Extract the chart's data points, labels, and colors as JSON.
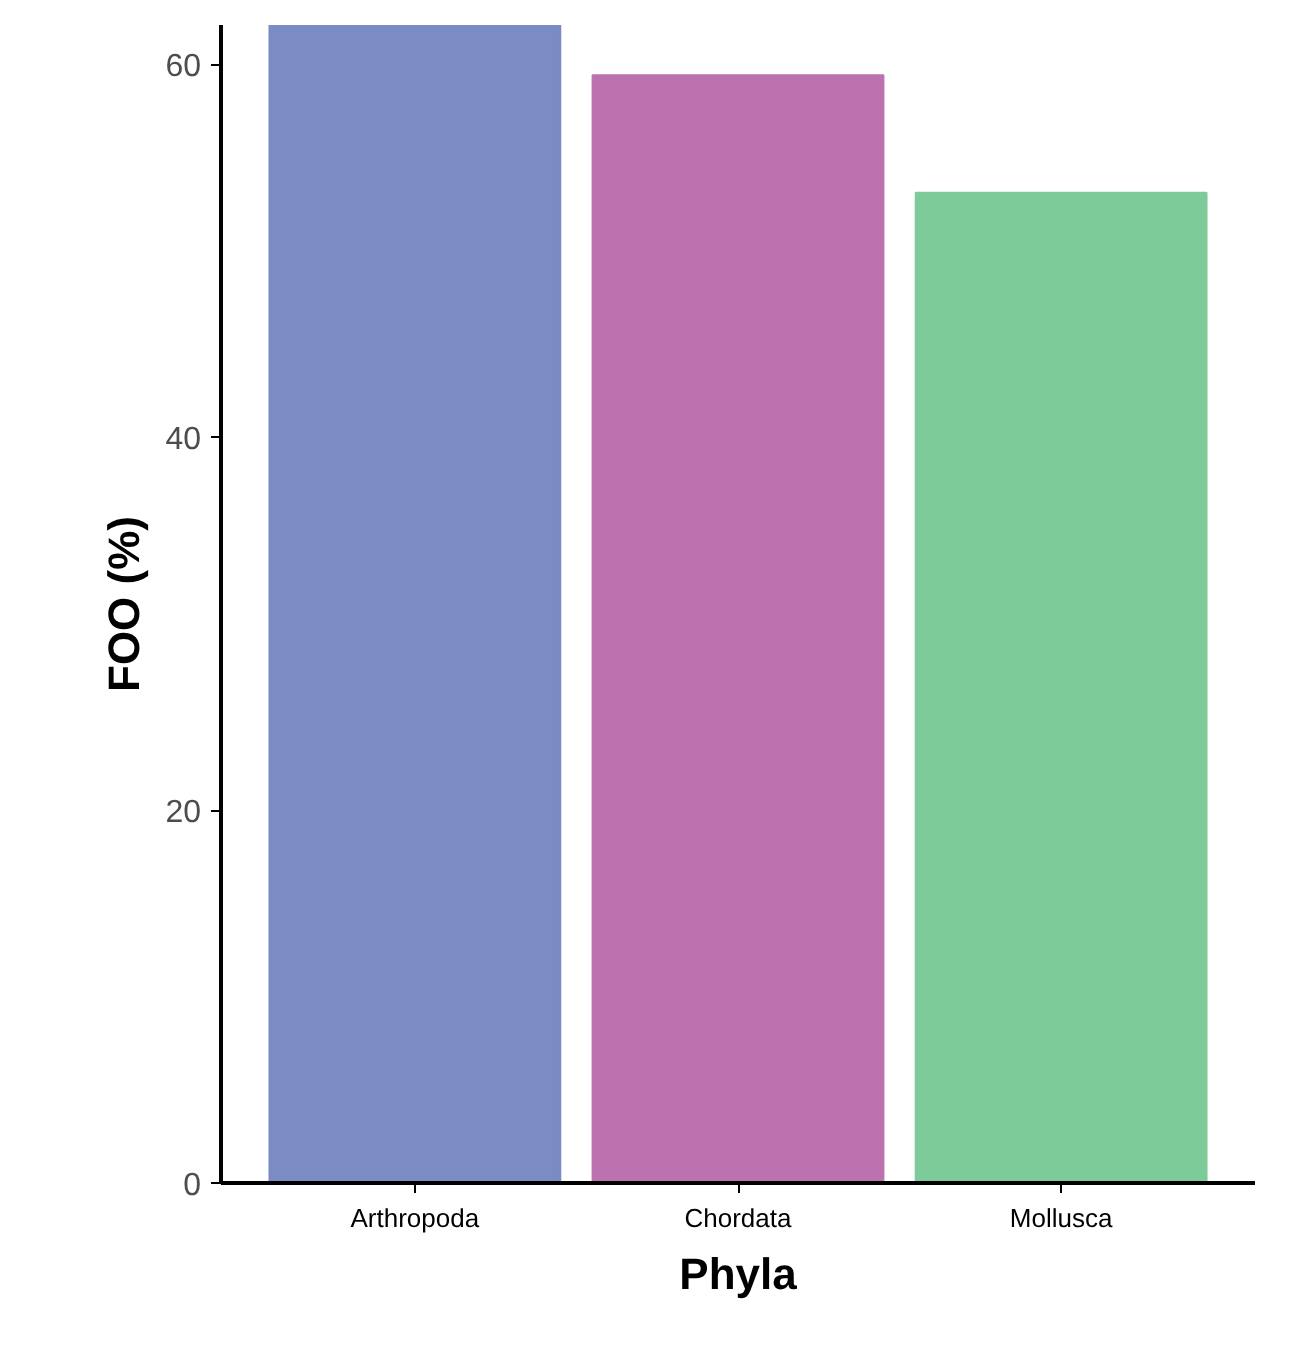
{
  "chart_data": {
    "type": "bar",
    "xlabel": "Phyla",
    "ylabel": "FOO (%)",
    "categories": [
      "Arthropoda",
      "Chordata",
      "Mollusca"
    ],
    "values": [
      62.1,
      59.4,
      53.1
    ],
    "colors": [
      "#7b8bc4",
      "#bd72b0",
      "#7ecb9a"
    ],
    "ylim": [
      0,
      62.1
    ],
    "yticks": [
      0,
      20,
      40,
      60
    ],
    "grid": false
  }
}
